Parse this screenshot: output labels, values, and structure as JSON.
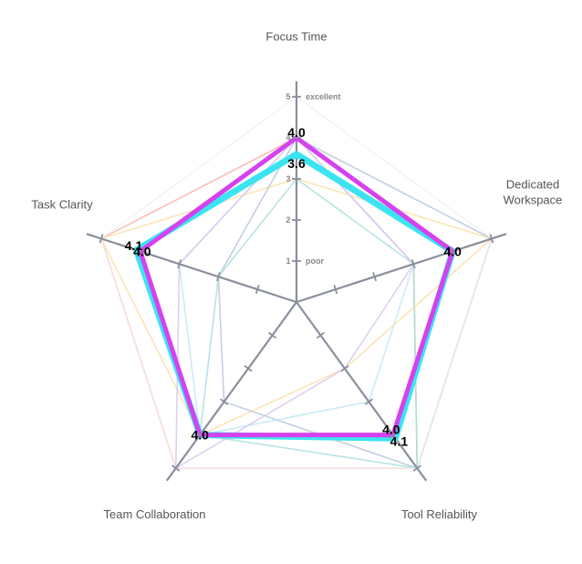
{
  "chart_data": {
    "type": "radar",
    "axes": [
      "Focus Time",
      "Dedicated Workspace",
      "Tool Reliability",
      "Team Collaboration",
      "Task Clarity"
    ],
    "range": [
      0,
      5
    ],
    "ticks": [
      1,
      2,
      3,
      4,
      5
    ],
    "tick_text": {
      "1": "poor",
      "5": "excellent"
    },
    "background_series": [
      {
        "color": "#f4b3a6",
        "values": [
          4,
          3,
          5,
          5,
          5
        ]
      },
      {
        "color": "#fbe0a8",
        "values": [
          3,
          5,
          2,
          4,
          5
        ]
      },
      {
        "color": "#b9c7dc",
        "values": [
          4,
          5,
          5,
          3,
          2
        ]
      },
      {
        "color": "#a9e0dc",
        "values": [
          3,
          3,
          5,
          4,
          2
        ]
      },
      {
        "color": "#c3e7f5",
        "values": [
          4,
          3,
          3,
          4,
          3
        ]
      },
      {
        "color": "#d8c8ef",
        "values": [
          4,
          3,
          2,
          5,
          3
        ]
      }
    ],
    "series": [
      {
        "color": "#3ae4f0",
        "values": [
          3.6,
          4.0,
          4.1,
          4.0,
          4.1
        ],
        "labels": [
          "3.6",
          "",
          "4.1",
          "",
          "4.1"
        ]
      },
      {
        "color": "#d641ef",
        "values": [
          4.0,
          4.0,
          4.0,
          4.0,
          4.0
        ],
        "labels": [
          "4.0",
          "4.0",
          "4.0",
          "4.0",
          "4.0"
        ]
      }
    ]
  }
}
